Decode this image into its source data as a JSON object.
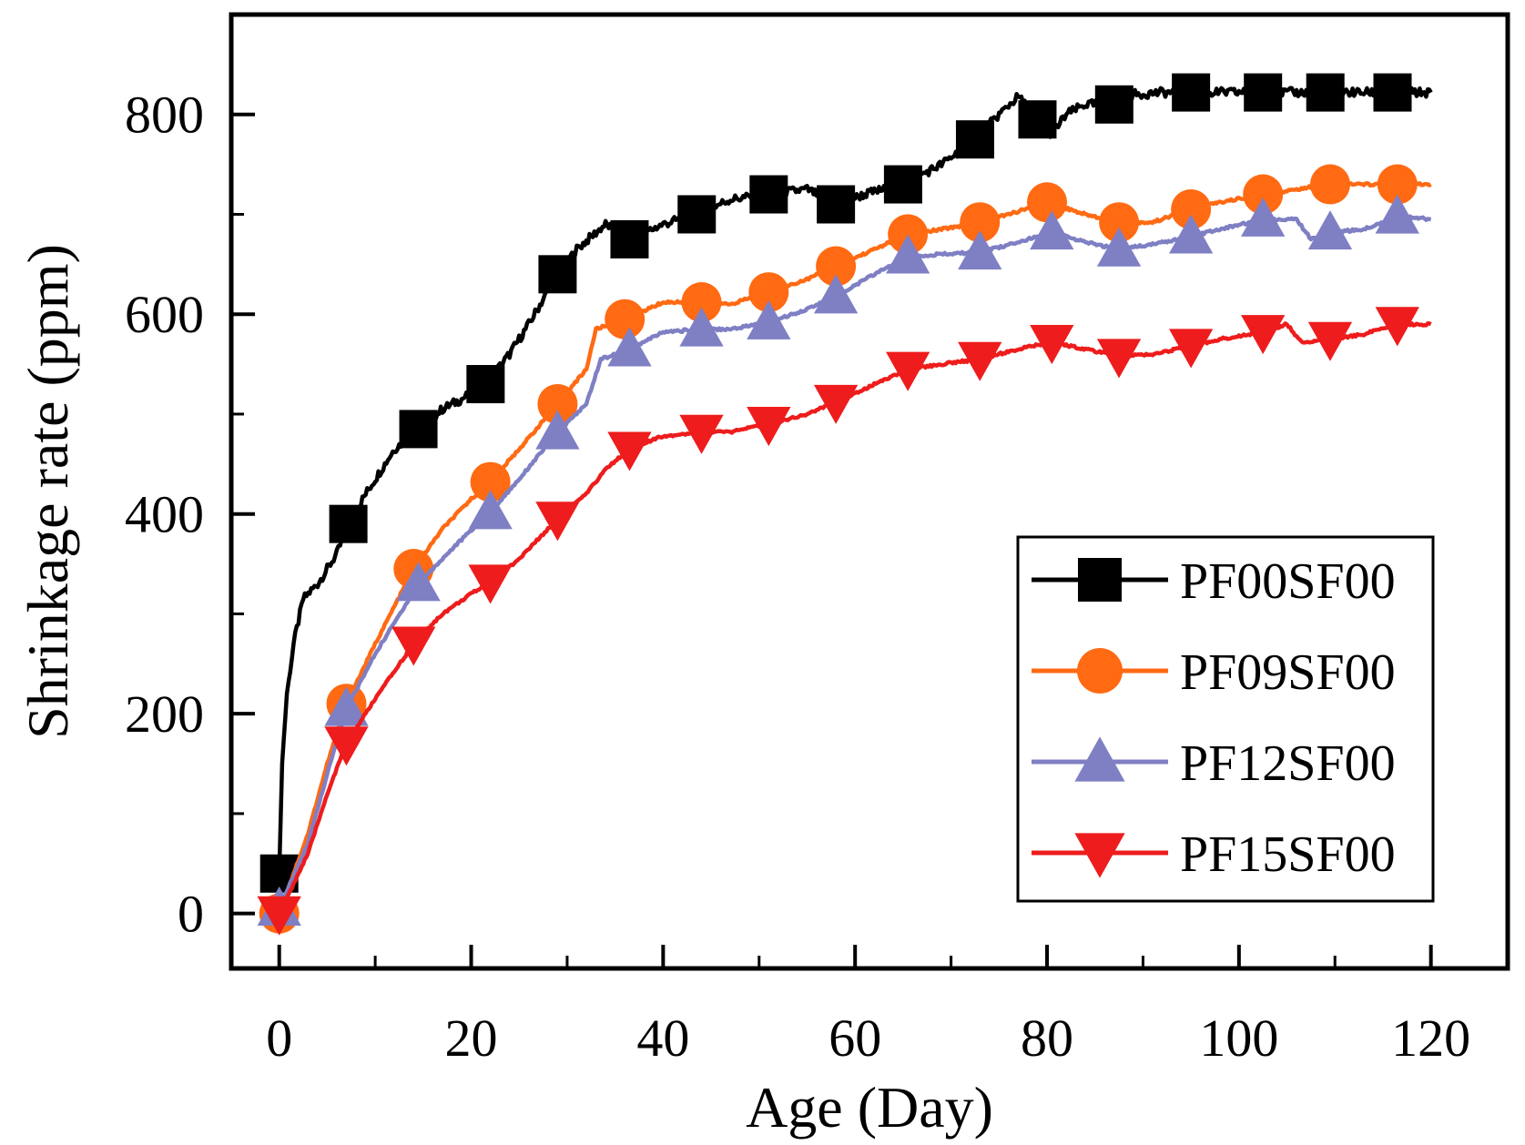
{
  "chart_data": {
    "type": "line",
    "title": "",
    "xlabel": "Age (Day)",
    "ylabel": "Shrinkage rate (ppm)",
    "xlim": [
      -5,
      128
    ],
    "ylim": [
      -55,
      900
    ],
    "xticks": [
      0,
      20,
      40,
      60,
      80,
      100,
      120
    ],
    "xtick_labels": [
      "0",
      "20",
      "40",
      "60",
      "80",
      "100",
      "120"
    ],
    "yticks": [
      0,
      200,
      400,
      600,
      800
    ],
    "ytick_labels": [
      "0",
      "200",
      "400",
      "600",
      "800"
    ],
    "legend_position": "bottom-right",
    "series": [
      {
        "name": "PF00SF00",
        "color": "#000000",
        "marker": "square",
        "x": [
          0,
          0.3,
          0.8,
          1.5,
          2.5,
          4,
          6,
          7.2,
          9,
          12,
          14.5,
          17,
          19,
          21.5,
          24,
          26,
          29,
          31,
          34,
          36.5,
          40,
          43.5,
          47,
          51,
          55,
          58,
          61,
          65,
          69,
          72.5,
          75,
          77,
          79,
          80.5,
          82,
          84,
          87,
          89,
          92,
          95,
          100,
          102.5,
          106,
          109,
          113,
          116,
          120
        ],
        "y": [
          40,
          150,
          220,
          270,
          315,
          330,
          360,
          390,
          420,
          465,
          485,
          505,
          515,
          530,
          560,
          590,
          640,
          665,
          690,
          675,
          690,
          700,
          715,
          720,
          725,
          710,
          720,
          730,
          750,
          775,
          800,
          818,
          795,
          780,
          800,
          810,
          810,
          820,
          822,
          822,
          822,
          822,
          822,
          822,
          822,
          822,
          822
        ]
      },
      {
        "name": "PF09SF00",
        "color": "#ff6a13",
        "marker": "circle",
        "x": [
          0,
          3,
          5,
          7,
          10,
          14,
          17,
          20,
          22,
          25,
          29,
          32,
          33,
          36,
          40,
          44,
          47,
          51,
          55,
          58,
          62,
          65.5,
          69,
          73,
          76,
          80,
          84,
          87.5,
          91,
          95,
          98,
          102.5,
          106,
          109.5,
          113,
          116.5,
          120
        ],
        "y": [
          0,
          80,
          150,
          210,
          270,
          345,
          385,
          415,
          432,
          465,
          510,
          545,
          585,
          595,
          612,
          612,
          610,
          622,
          635,
          648,
          665,
          680,
          685,
          692,
          700,
          712,
          700,
          692,
          692,
          705,
          712,
          720,
          725,
          730,
          730,
          730,
          730
        ]
      },
      {
        "name": "PF12SF00",
        "color": "#7f7fc4",
        "marker": "triangle-up",
        "x": [
          0,
          3,
          5,
          7,
          10,
          14.5,
          18,
          22,
          25,
          29,
          32,
          33.5,
          36.5,
          40,
          44,
          47,
          51,
          55,
          58,
          62,
          65.5,
          69,
          73,
          77,
          80.5,
          84,
          87.5,
          91,
          95,
          98,
          102.5,
          106,
          107.5,
          109.5,
          113,
          116.5,
          120
        ],
        "y": [
          5,
          70,
          140,
          205,
          260,
          330,
          365,
          402,
          435,
          482,
          510,
          555,
          565,
          582,
          585,
          585,
          592,
          605,
          618,
          640,
          658,
          660,
          662,
          672,
          682,
          672,
          665,
          670,
          678,
          685,
          695,
          695,
          675,
          682,
          685,
          698,
          695
        ]
      },
      {
        "name": "PF15SF00",
        "color": "#ee1c1c",
        "marker": "triangle-down",
        "x": [
          0,
          3,
          5,
          7,
          10,
          14,
          17,
          20,
          22,
          25,
          29,
          32,
          34,
          36.5,
          40,
          44,
          47,
          51,
          55,
          58,
          62,
          65.5,
          69,
          73,
          77,
          80.5,
          84,
          87.5,
          91,
          95,
          98,
          102.5,
          105,
          106.5,
          109.5,
          113,
          116.5,
          120
        ],
        "y": [
          0,
          60,
          120,
          170,
          215,
          270,
          300,
          320,
          332,
          355,
          395,
          420,
          445,
          465,
          478,
          482,
          482,
          490,
          500,
          512,
          530,
          545,
          550,
          555,
          565,
          572,
          565,
          558,
          560,
          568,
          575,
          582,
          590,
          572,
          575,
          580,
          590,
          590
        ]
      }
    ]
  }
}
